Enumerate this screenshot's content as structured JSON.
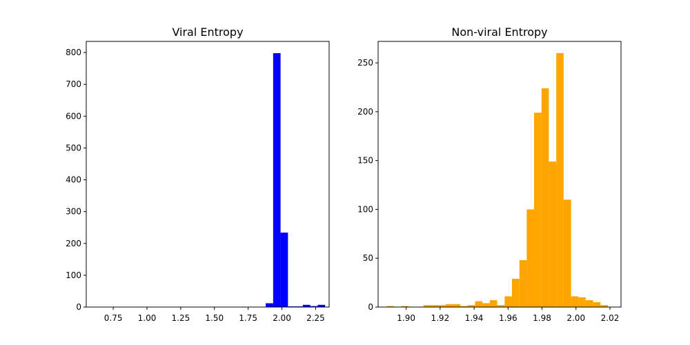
{
  "chart_data": [
    {
      "type": "bar",
      "title": "Viral Entropy",
      "xlabel": "",
      "ylabel": "",
      "color": "#0000ff",
      "xlim": [
        0.55,
        2.35
      ],
      "ylim": [
        0,
        835
      ],
      "xticks": [
        {
          "value": 0.75,
          "label": "0.75"
        },
        {
          "value": 1.0,
          "label": "1.00"
        },
        {
          "value": 1.25,
          "label": "1.25"
        },
        {
          "value": 1.5,
          "label": "1.50"
        },
        {
          "value": 1.75,
          "label": "1.75"
        },
        {
          "value": 2.0,
          "label": "2.00"
        },
        {
          "value": 2.25,
          "label": "2.25"
        }
      ],
      "yticks": [
        {
          "value": 0,
          "label": "0"
        },
        {
          "value": 100,
          "label": "100"
        },
        {
          "value": 200,
          "label": "200"
        },
        {
          "value": 300,
          "label": "300"
        },
        {
          "value": 400,
          "label": "400"
        },
        {
          "value": 500,
          "label": "500"
        },
        {
          "value": 600,
          "label": "600"
        },
        {
          "value": 700,
          "label": "700"
        },
        {
          "value": 800,
          "label": "800"
        }
      ],
      "bins": [
        {
          "x0": 0.64,
          "x1": 0.695,
          "value": 1
        },
        {
          "x0": 1.88,
          "x1": 1.935,
          "value": 12
        },
        {
          "x0": 1.935,
          "x1": 1.99,
          "value": 798
        },
        {
          "x0": 1.99,
          "x1": 2.045,
          "value": 234
        },
        {
          "x0": 2.045,
          "x1": 2.1,
          "value": 2
        },
        {
          "x0": 2.1,
          "x1": 2.155,
          "value": 2
        },
        {
          "x0": 2.155,
          "x1": 2.21,
          "value": 7
        },
        {
          "x0": 2.21,
          "x1": 2.265,
          "value": 3
        },
        {
          "x0": 2.265,
          "x1": 2.32,
          "value": 7
        }
      ]
    },
    {
      "type": "bar",
      "title": "Non-viral Entropy",
      "xlabel": "",
      "ylabel": "",
      "color": "#ffa500",
      "xlim": [
        1.8835,
        2.0265
      ],
      "ylim": [
        0,
        272
      ],
      "xticks": [
        {
          "value": 1.9,
          "label": "1.90"
        },
        {
          "value": 1.92,
          "label": "1.92"
        },
        {
          "value": 1.94,
          "label": "1.94"
        },
        {
          "value": 1.96,
          "label": "1.96"
        },
        {
          "value": 1.98,
          "label": "1.98"
        },
        {
          "value": 2.0,
          "label": "2.00"
        },
        {
          "value": 2.02,
          "label": "2.02"
        }
      ],
      "yticks": [
        {
          "value": 0,
          "label": "0"
        },
        {
          "value": 50,
          "label": "50"
        },
        {
          "value": 100,
          "label": "100"
        },
        {
          "value": 150,
          "label": "150"
        },
        {
          "value": 200,
          "label": "200"
        },
        {
          "value": 250,
          "label": "250"
        }
      ],
      "bins": [
        {
          "x0": 1.8885,
          "x1": 1.8928,
          "value": 1
        },
        {
          "x0": 1.8928,
          "x1": 1.8972,
          "value": 0
        },
        {
          "x0": 1.8972,
          "x1": 1.9015,
          "value": 1
        },
        {
          "x0": 1.9015,
          "x1": 1.9059,
          "value": 0
        },
        {
          "x0": 1.9059,
          "x1": 1.9102,
          "value": 0
        },
        {
          "x0": 1.9102,
          "x1": 1.9145,
          "value": 2
        },
        {
          "x0": 1.9145,
          "x1": 1.9189,
          "value": 2
        },
        {
          "x0": 1.9189,
          "x1": 1.9232,
          "value": 2
        },
        {
          "x0": 1.9232,
          "x1": 1.9276,
          "value": 3
        },
        {
          "x0": 1.9276,
          "x1": 1.9319,
          "value": 3
        },
        {
          "x0": 1.9319,
          "x1": 1.9363,
          "value": 1
        },
        {
          "x0": 1.9363,
          "x1": 1.9406,
          "value": 2
        },
        {
          "x0": 1.9406,
          "x1": 1.9449,
          "value": 6
        },
        {
          "x0": 1.9449,
          "x1": 1.9493,
          "value": 4
        },
        {
          "x0": 1.9493,
          "x1": 1.9536,
          "value": 7
        },
        {
          "x0": 1.9536,
          "x1": 1.958,
          "value": 2
        },
        {
          "x0": 1.958,
          "x1": 1.9623,
          "value": 11
        },
        {
          "x0": 1.9623,
          "x1": 1.9667,
          "value": 29
        },
        {
          "x0": 1.9667,
          "x1": 1.971,
          "value": 48
        },
        {
          "x0": 1.971,
          "x1": 1.9753,
          "value": 100
        },
        {
          "x0": 1.9753,
          "x1": 1.9797,
          "value": 199
        },
        {
          "x0": 1.9797,
          "x1": 1.984,
          "value": 224
        },
        {
          "x0": 1.984,
          "x1": 1.9884,
          "value": 149
        },
        {
          "x0": 1.9884,
          "x1": 1.9927,
          "value": 260
        },
        {
          "x0": 1.9927,
          "x1": 1.9971,
          "value": 110
        },
        {
          "x0": 1.9971,
          "x1": 2.0014,
          "value": 11
        },
        {
          "x0": 2.0014,
          "x1": 2.0057,
          "value": 10
        },
        {
          "x0": 2.0057,
          "x1": 2.0101,
          "value": 7
        },
        {
          "x0": 2.0101,
          "x1": 2.0144,
          "value": 5
        },
        {
          "x0": 2.0144,
          "x1": 2.0188,
          "value": 2
        }
      ]
    }
  ]
}
